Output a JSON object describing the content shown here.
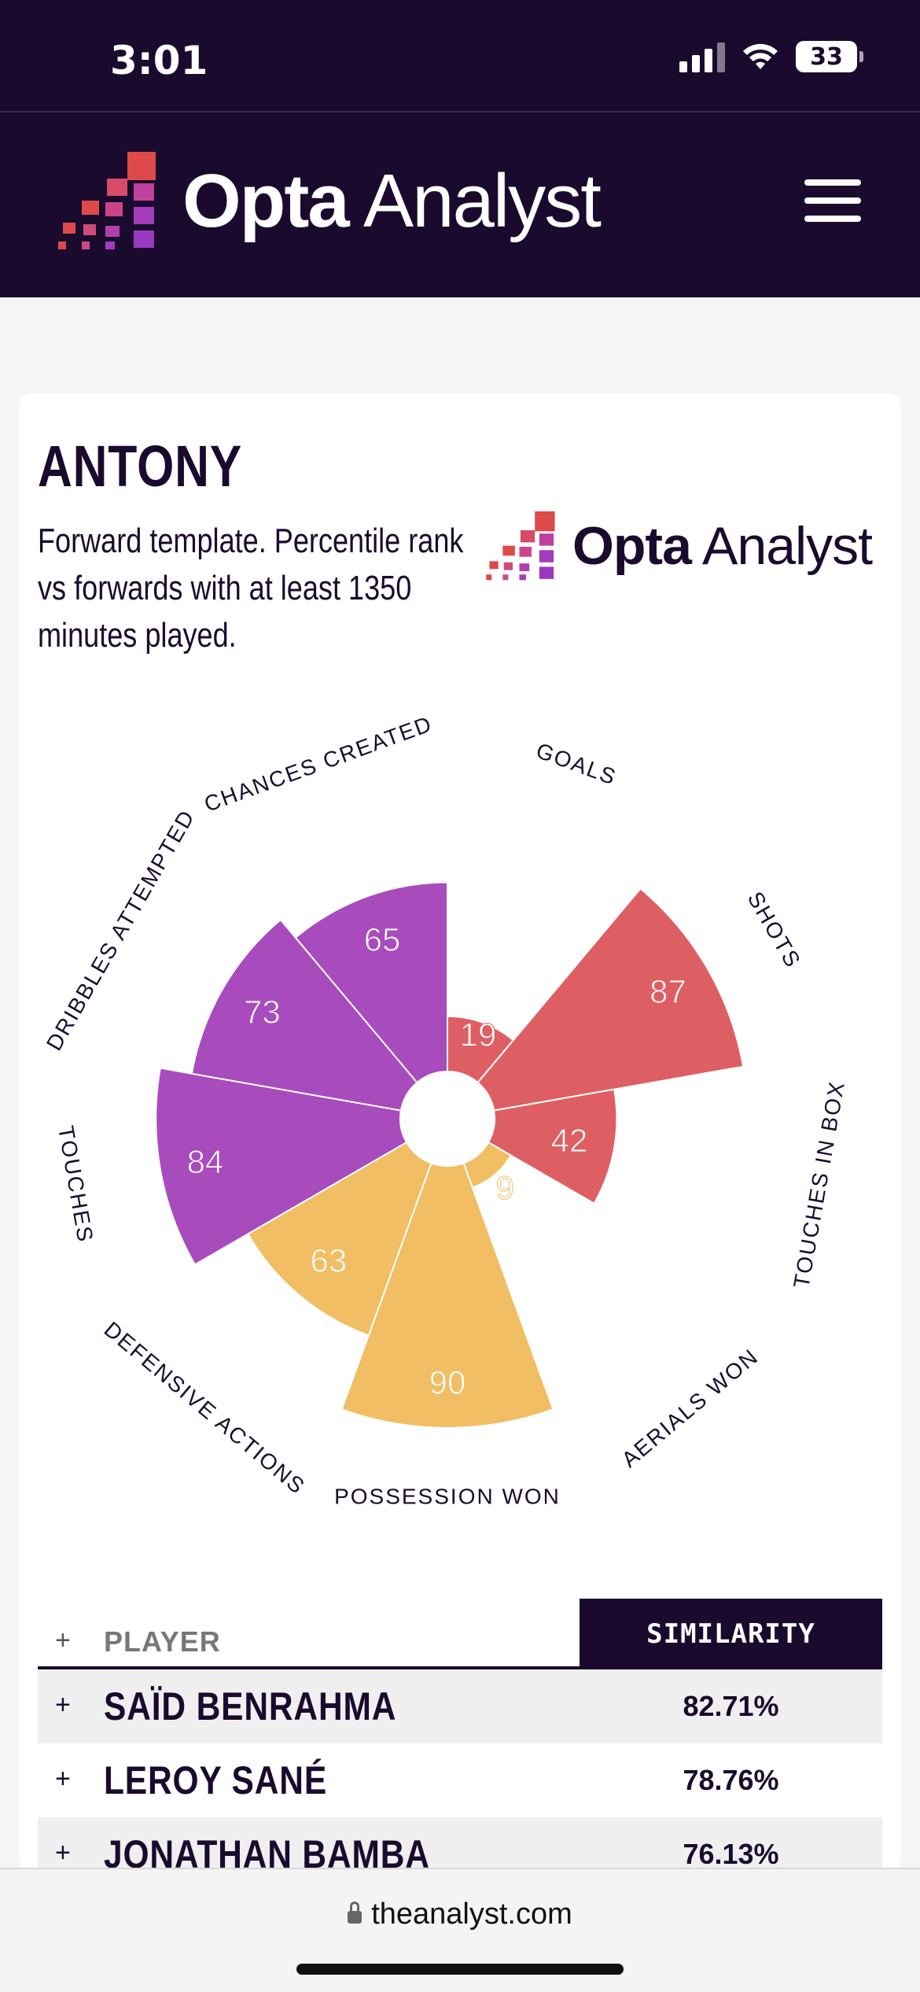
{
  "status": {
    "time": "3:01",
    "battery": "33"
  },
  "header": {
    "logo_bold": "Opta",
    "logo_light": " Analyst",
    "menu_icon": "hamburger-icon"
  },
  "card": {
    "player": "ANTONY",
    "subtitle": "Forward template. Percentile rank vs forwards with at least 1350 minutes played.",
    "logo_bold": "Opta",
    "logo_light": " Analyst"
  },
  "chart_data": {
    "type": "polar-bar",
    "categories": [
      "GOALS",
      "SHOTS",
      "TOUCHES IN BOX",
      "AERIALS WON",
      "POSSESSION WON",
      "DEFENSIVE ACTIONS",
      "TOUCHES",
      "DRIBBLES ATTEMPTED",
      "CHANCES CREATED"
    ],
    "values": [
      19,
      87,
      42,
      9,
      90,
      63,
      84,
      73,
      65
    ],
    "colors": [
      "#de5f63",
      "#de5f63",
      "#de5f63",
      "#f1be63",
      "#f1be63",
      "#f1be63",
      "#a84bbd",
      "#a84bbd",
      "#a84bbd"
    ],
    "ylim": [
      0,
      100
    ]
  },
  "table": {
    "col_player": "PLAYER",
    "col_similarity": "SIMILARITY",
    "plus": "+",
    "rows": [
      {
        "name": "SAÏD BENRAHMA",
        "value": "82.71%"
      },
      {
        "name": "LEROY SANÉ",
        "value": "78.76%"
      },
      {
        "name": "JONATHAN BAMBA",
        "value": "76.13%"
      }
    ]
  },
  "browser": {
    "url": "theanalyst.com"
  }
}
